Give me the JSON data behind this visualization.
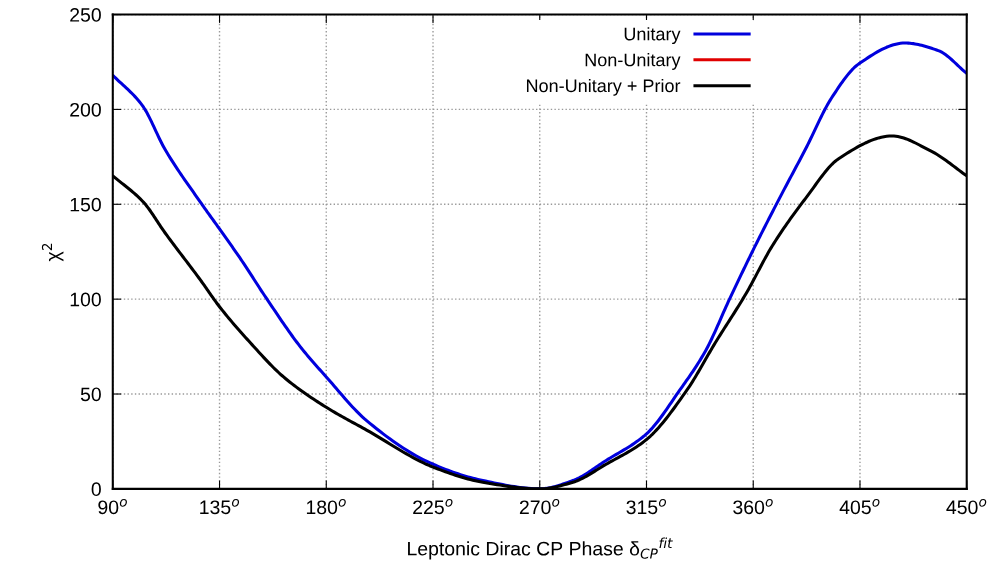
{
  "chart_data": {
    "type": "line",
    "xlabel": "Leptonic Dirac CP Phase δ$_{CP}$$^{fit}$",
    "ylabel": "χ$^{2}$",
    "xlim": [
      90,
      450
    ],
    "ylim": [
      0,
      250
    ],
    "xticks": [
      {
        "value": 90,
        "label": "90$^{o}$"
      },
      {
        "value": 135,
        "label": "135$^{o}$"
      },
      {
        "value": 180,
        "label": "180$^{o}$"
      },
      {
        "value": 225,
        "label": "225$^{o}$"
      },
      {
        "value": 270,
        "label": "270$^{o}$"
      },
      {
        "value": 315,
        "label": "315$^{o}$"
      },
      {
        "value": 360,
        "label": "360$^{o}$"
      },
      {
        "value": 405,
        "label": "405$^{o}$"
      },
      {
        "value": 450,
        "label": "450$^{o}$"
      }
    ],
    "yticks": [
      0,
      50,
      100,
      150,
      200,
      250
    ],
    "grid": true,
    "legend": "top right",
    "line_style": "solid",
    "series": [
      {
        "name": "Unitary",
        "color": "#0000dd",
        "x": [
          90,
          102.5,
          112,
          127,
          135,
          144,
          155,
          169,
          180,
          197,
          225,
          246,
          270,
          284,
          298,
          315,
          329,
          340,
          350,
          360,
          371,
          382,
          393,
          404.5,
          424,
          438,
          450
        ],
        "values": [
          218,
          202,
          179,
          151,
          137,
          121,
          100,
          75,
          59,
          36,
          13,
          4.4,
          0,
          4.4,
          15,
          29,
          52,
          73,
          100,
          126,
          153,
          179,
          206,
          224,
          235,
          231,
          219
        ]
      },
      {
        "name": "Non-Unitary",
        "color": "#e00000"
      },
      {
        "name": "Non-Unitary + Prior",
        "color": "#000000",
        "x": [
          90,
          103,
          112,
          127,
          135,
          148,
          162,
          180,
          197,
          225,
          246,
          270,
          284,
          298,
          315,
          332,
          344,
          357,
          368,
          382,
          396,
          418.5,
          435,
          450
        ],
        "values": [
          165,
          151,
          135,
          110,
          96,
          77,
          59,
          43,
          31,
          11.5,
          3.5,
          0,
          3.5,
          13,
          26,
          52,
          77,
          103,
          128,
          153,
          174,
          186,
          178,
          165
        ]
      }
    ]
  }
}
